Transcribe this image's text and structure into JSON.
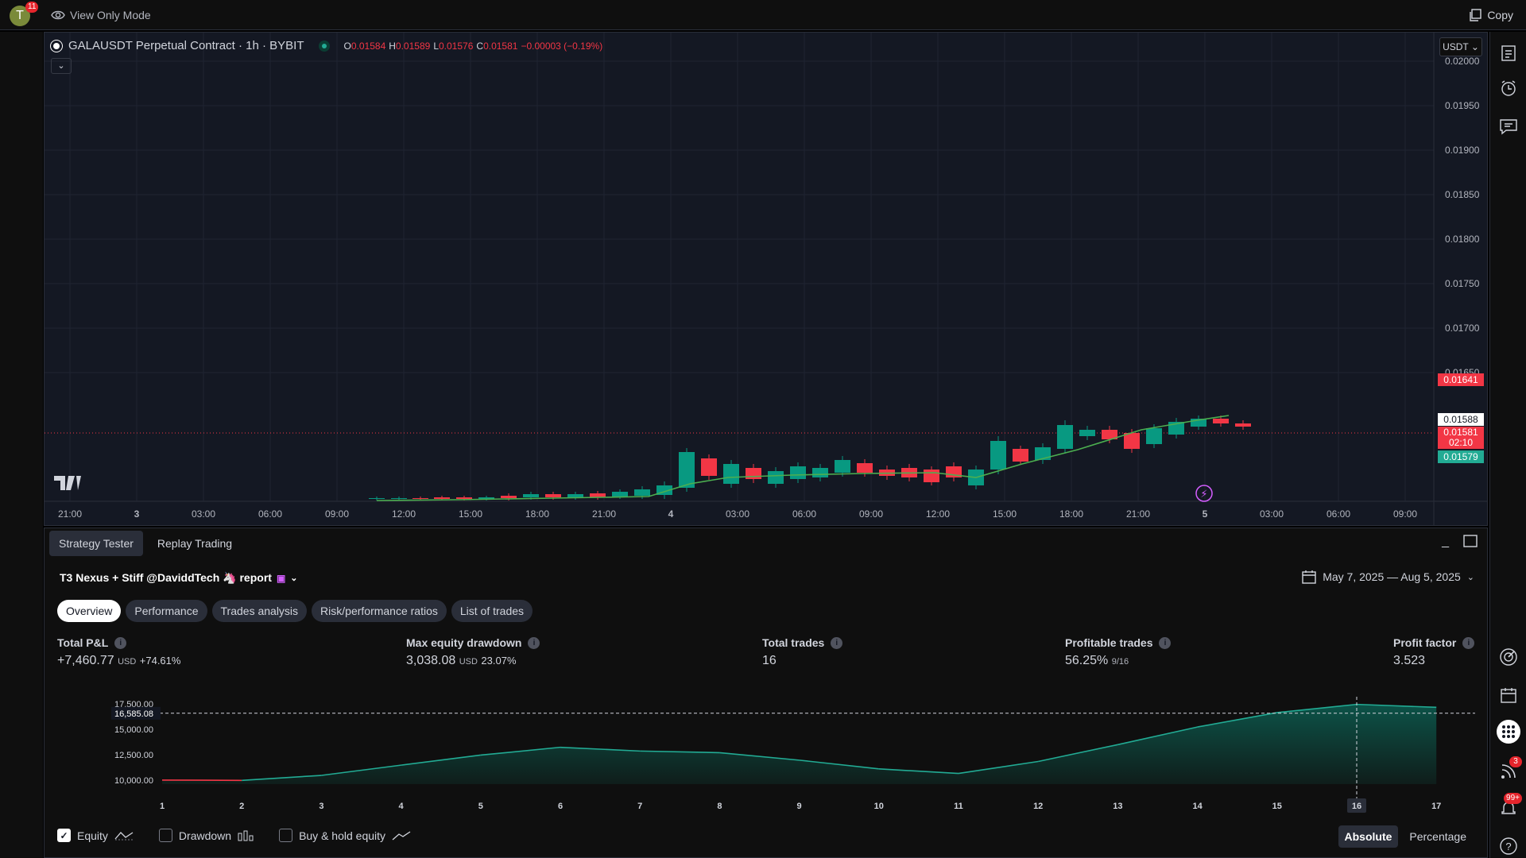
{
  "topbar": {
    "avatar_letter": "T",
    "avatar_badge": "11",
    "view_mode_label": "View Only Mode",
    "copy_label": "Copy"
  },
  "chart": {
    "symbol_title": "GALAUSDT Perpetual Contract · 1h · BYBIT",
    "ohlc": {
      "o_label": "O",
      "o": "0.01584",
      "h_label": "H",
      "h": "0.01589",
      "l_label": "L",
      "l": "0.01576",
      "c_label": "C",
      "c": "0.01581",
      "change": "−0.00003 (−0.19%)"
    },
    "currency": "USDT",
    "price_axis": [
      "0.02000",
      "0.01950",
      "0.01900",
      "0.01850",
      "0.01800",
      "0.01750",
      "0.01700",
      "0.01650"
    ],
    "price_tags": {
      "high_tag": "0.01641",
      "white_tag": "0.01588",
      "last_price": "0.01581",
      "countdown": "02:10",
      "low_tag": "0.01579"
    },
    "time_axis": [
      "21:00",
      "3",
      "03:00",
      "06:00",
      "09:00",
      "12:00",
      "15:00",
      "18:00",
      "21:00",
      "4",
      "03:00",
      "06:00",
      "09:00",
      "12:00",
      "15:00",
      "18:00",
      "21:00",
      "5",
      "03:00",
      "06:00",
      "09:00"
    ],
    "colors": {
      "up": "#089981",
      "down": "#f23645",
      "ma": "#4caf50"
    }
  },
  "panel": {
    "tabs": [
      "Strategy Tester",
      "Replay Trading"
    ],
    "strategy_title": "T3 Nexus + Stiff @DaviddTech 🦄 report",
    "date_range": "May 7, 2025 — Aug 5, 2025",
    "subtabs": [
      "Overview",
      "Performance",
      "Trades analysis",
      "Risk/performance ratios",
      "List of trades"
    ],
    "metrics": {
      "total_pnl": {
        "label": "Total P&L",
        "value": "+7,460.77",
        "unit": "USD",
        "pct": "+74.61%"
      },
      "max_dd": {
        "label": "Max equity drawdown",
        "value": "3,038.08",
        "unit": "USD",
        "pct": "23.07%"
      },
      "total_trades": {
        "label": "Total trades",
        "value": "16"
      },
      "profitable": {
        "label": "Profitable trades",
        "value": "56.25%",
        "sub": "9/16"
      },
      "profit_factor": {
        "label": "Profit factor",
        "value": "3.523"
      }
    },
    "legend": {
      "equity": "Equity",
      "drawdown": "Drawdown",
      "buyhold": "Buy & hold equity"
    },
    "mode_buttons": {
      "absolute": "Absolute",
      "percentage": "Percentage"
    },
    "right_rail_badges": {
      "feed": "3",
      "notifications": "99+"
    }
  },
  "chart_data": {
    "type": "area",
    "title": "",
    "xlabel": "",
    "ylabel": "",
    "x": [
      1,
      2,
      3,
      4,
      5,
      6,
      7,
      8,
      9,
      10,
      11,
      12,
      13,
      14,
      15,
      16,
      17
    ],
    "series": [
      {
        "values": [
          10000,
          9970,
          10460,
          11470,
          12460,
          13230,
          12860,
          12700,
          11960,
          11100,
          10650,
          11830,
          13490,
          15230,
          16650,
          17460,
          17170
        ]
      }
    ],
    "ylim": [
      9600,
      17900
    ],
    "yticks": [
      "17,500.00",
      "15,000.00",
      "12,500.00",
      "10,000.00"
    ],
    "ytick_values": [
      17500,
      15000,
      12500,
      10000
    ],
    "crosshair_value": "16,585.08",
    "crosshair_y_value": 16585.08,
    "crosshair_x": 16,
    "grid": false
  }
}
